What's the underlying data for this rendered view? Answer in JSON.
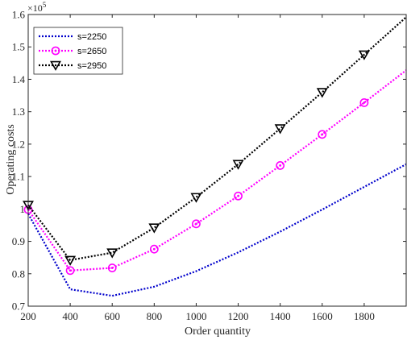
{
  "chart_data": {
    "type": "line",
    "xlabel": "Order quantity",
    "ylabel": "Operating costs",
    "y_multiplier": {
      "base": "×10",
      "exponent": "5"
    },
    "xlim": [
      200,
      2000
    ],
    "ylim": [
      0.7,
      1.6
    ],
    "x_ticks": [
      200,
      400,
      600,
      800,
      1000,
      1200,
      1400,
      1600,
      1800
    ],
    "x_tick_labels": [
      "200",
      "400",
      "600",
      "800",
      "1000",
      "1200",
      "1400",
      "1600",
      "1800"
    ],
    "y_ticks": [
      0.7,
      0.8,
      0.9,
      1.0,
      1.1,
      1.2,
      1.3,
      1.4,
      1.5,
      1.6
    ],
    "y_tick_labels": [
      "0.7",
      "0.8",
      "0.9",
      "1",
      "1.1",
      "1.2",
      "1.3",
      "1.4",
      "1.5",
      "1.6"
    ],
    "grid": false,
    "legend_position": "top-left",
    "series": [
      {
        "name": "s=2250",
        "color": "#0000cc",
        "marker": "point",
        "x": [
          200,
          400,
          600,
          800,
          1000,
          1200,
          1400,
          1600,
          1800,
          2000
        ],
        "values": [
          0.985,
          0.752,
          0.732,
          0.76,
          0.808,
          0.866,
          0.93,
          0.998,
          1.068,
          1.138
        ]
      },
      {
        "name": "s=2650",
        "color": "#ff00ff",
        "marker": "circle",
        "x": [
          200,
          400,
          600,
          800,
          1000,
          1200,
          1400,
          1600,
          1800,
          2000
        ],
        "values": [
          0.998,
          0.81,
          0.818,
          0.876,
          0.954,
          1.04,
          1.134,
          1.23,
          1.328,
          1.428
        ],
        "marker_indices": [
          0,
          1,
          2,
          3,
          4,
          5,
          6,
          7,
          8
        ]
      },
      {
        "name": "s=2950",
        "color": "#000000",
        "marker": "triangle-down",
        "x": [
          200,
          400,
          600,
          800,
          1000,
          1200,
          1400,
          1600,
          1800,
          2000
        ],
        "values": [
          1.012,
          0.842,
          0.865,
          0.942,
          1.036,
          1.138,
          1.248,
          1.36,
          1.476,
          1.592
        ],
        "marker_indices": [
          0,
          1,
          2,
          3,
          4,
          5,
          6,
          7,
          8
        ]
      }
    ]
  }
}
